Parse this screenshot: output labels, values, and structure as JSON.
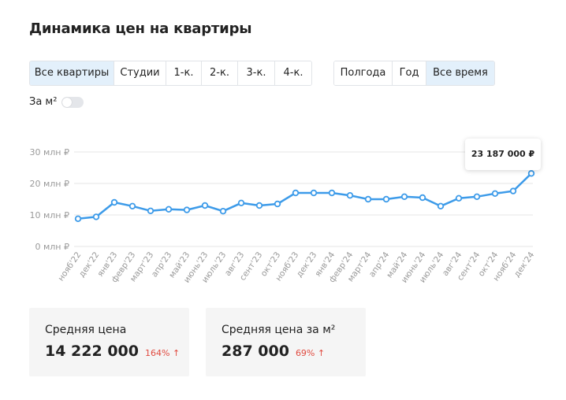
{
  "title": "Динамика цен на квартиры",
  "room_filters": [
    {
      "label": "Все квартиры",
      "active": true
    },
    {
      "label": "Студии",
      "active": false
    },
    {
      "label": "1-к.",
      "active": false
    },
    {
      "label": "2-к.",
      "active": false
    },
    {
      "label": "3-к.",
      "active": false
    },
    {
      "label": "4-к.",
      "active": false
    }
  ],
  "period_filters": [
    {
      "label": "Полгода",
      "active": false
    },
    {
      "label": "Год",
      "active": false
    },
    {
      "label": "Все время",
      "active": true
    }
  ],
  "per_m2_toggle": {
    "label": "За м²",
    "on": false
  },
  "tooltip": {
    "value": "23 187 000 ₽"
  },
  "cards": [
    {
      "label": "Средняя цена",
      "value": "14 222 000",
      "change": "164% ↑"
    },
    {
      "label": "Средняя цена за м²",
      "value": "287 000",
      "change": "69% ↑"
    }
  ],
  "colors": {
    "line": "#3d9be9",
    "grid": "#e6e6e6",
    "active_button": "#e3f0fb",
    "change_up": "#e04a3f"
  },
  "chart_data": {
    "type": "line",
    "x": [
      "нояб'22",
      "дек'22",
      "янв'23",
      "февр'23",
      "март'23",
      "апр'23",
      "май'23",
      "июнь'23",
      "июль'23",
      "авг'23",
      "сент'23",
      "окт'23",
      "нояб'23",
      "дек'23",
      "янв'24",
      "февр'24",
      "март'24",
      "апр'24",
      "май'24",
      "июнь'24",
      "июль'24",
      "авг'24",
      "сент'24",
      "окт'24",
      "нояб'24",
      "дек'24"
    ],
    "series": [
      {
        "values": [
          8.8,
          9.4,
          14.0,
          12.8,
          11.3,
          11.8,
          11.6,
          13.0,
          11.2,
          13.8,
          13.0,
          13.5,
          17.0,
          17.0,
          17.0,
          16.2,
          15.0,
          15.0,
          15.8,
          15.5,
          12.8,
          15.3,
          15.8,
          16.8,
          17.6,
          23.187
        ]
      }
    ],
    "yticks": [
      "0 млн ₽",
      "10 млн ₽",
      "20 млн ₽",
      "30 млн ₽"
    ],
    "ylim": [
      0,
      30
    ],
    "grid": true
  }
}
